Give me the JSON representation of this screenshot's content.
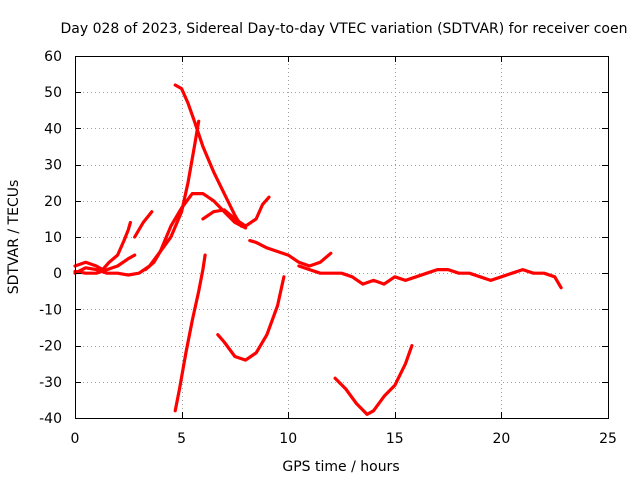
{
  "chart_data": {
    "type": "line",
    "title": "Day 028 of 2023, Sidereal Day-to-day VTEC variation (SDTVAR) for receiver coen",
    "xlabel": "GPS time / hours",
    "ylabel": "SDTVAR / TECUs",
    "xlim": [
      0,
      25
    ],
    "ylim": [
      -40,
      60
    ],
    "xticks": [
      0,
      5,
      10,
      15,
      20,
      25
    ],
    "yticks": [
      -40,
      -30,
      -20,
      -10,
      0,
      10,
      20,
      30,
      40,
      50,
      60
    ],
    "xtick_labels": [
      "0",
      "5",
      "10",
      "15",
      "20",
      "25"
    ],
    "ytick_labels": [
      "-40",
      "-30",
      "-20",
      "-10",
      "0",
      "10",
      "20",
      "30",
      "40",
      "50",
      "60"
    ],
    "grid": true,
    "legend": "none",
    "series_color": "#ff0000",
    "series": [
      {
        "name": "trace-1",
        "points": [
          [
            0,
            0
          ],
          [
            0.5,
            1.5
          ],
          [
            1,
            1
          ],
          [
            1.5,
            0
          ],
          [
            2,
            0
          ],
          [
            2.5,
            -0.5
          ],
          [
            3,
            0
          ],
          [
            3.5,
            2
          ],
          [
            4,
            6
          ],
          [
            4.5,
            13
          ],
          [
            5,
            18
          ],
          [
            5.5,
            22
          ],
          [
            6,
            22
          ],
          [
            6.5,
            20
          ],
          [
            7,
            17
          ],
          [
            7.5,
            14
          ],
          [
            8,
            12.5
          ]
        ]
      },
      {
        "name": "trace-2",
        "points": [
          [
            0,
            2
          ],
          [
            0.5,
            3
          ],
          [
            1,
            2
          ],
          [
            1.3,
            1
          ],
          [
            1.6,
            3
          ],
          [
            2,
            5
          ],
          [
            2.3,
            9
          ],
          [
            2.5,
            12
          ],
          [
            2.6,
            14
          ]
        ]
      },
      {
        "name": "trace-3",
        "points": [
          [
            0,
            0.5
          ],
          [
            0.5,
            0
          ],
          [
            1,
            0
          ],
          [
            1.5,
            1
          ],
          [
            2,
            2
          ],
          [
            2.5,
            4
          ],
          [
            2.8,
            5
          ]
        ]
      },
      {
        "name": "trace-4",
        "points": [
          [
            2.8,
            10
          ],
          [
            3.2,
            14
          ],
          [
            3.6,
            17
          ]
        ]
      },
      {
        "name": "trace-5",
        "points": [
          [
            3.3,
            1
          ],
          [
            3.7,
            3
          ],
          [
            4,
            6
          ],
          [
            4.5,
            10
          ],
          [
            5,
            17
          ],
          [
            5.3,
            25
          ],
          [
            5.6,
            35
          ],
          [
            5.8,
            42
          ]
        ]
      },
      {
        "name": "trace-6",
        "points": [
          [
            4.7,
            52
          ],
          [
            5,
            51
          ],
          [
            5.3,
            47
          ],
          [
            5.6,
            42
          ],
          [
            6,
            35
          ],
          [
            6.5,
            28
          ],
          [
            7,
            22
          ],
          [
            7.5,
            16
          ],
          [
            7.8,
            13
          ]
        ]
      },
      {
        "name": "trace-7",
        "points": [
          [
            6,
            15
          ],
          [
            6.5,
            17
          ],
          [
            7,
            17.5
          ],
          [
            7.5,
            15
          ],
          [
            8,
            13
          ],
          [
            8.5,
            15
          ],
          [
            8.8,
            19
          ],
          [
            9.1,
            21
          ]
        ]
      },
      {
        "name": "trace-8",
        "points": [
          [
            4.7,
            -38
          ],
          [
            4.9,
            -32
          ],
          [
            5.2,
            -22
          ],
          [
            5.5,
            -13
          ],
          [
            5.8,
            -5
          ],
          [
            6,
            1
          ],
          [
            6.1,
            5
          ]
        ]
      },
      {
        "name": "trace-9",
        "points": [
          [
            6.7,
            -17
          ],
          [
            7,
            -19
          ],
          [
            7.5,
            -23
          ],
          [
            8,
            -24
          ],
          [
            8.5,
            -22
          ],
          [
            9,
            -17
          ],
          [
            9.5,
            -9
          ],
          [
            9.8,
            -1
          ]
        ]
      },
      {
        "name": "trace-10",
        "points": [
          [
            8.2,
            9
          ],
          [
            8.5,
            8.5
          ],
          [
            9,
            7
          ],
          [
            9.5,
            6
          ],
          [
            10,
            5
          ],
          [
            10.5,
            3
          ],
          [
            11,
            2
          ],
          [
            11.5,
            3
          ],
          [
            12,
            5.5
          ]
        ]
      },
      {
        "name": "trace-11",
        "points": [
          [
            10.5,
            2
          ],
          [
            11,
            1
          ],
          [
            11.5,
            0
          ],
          [
            12,
            0
          ],
          [
            12.5,
            0
          ],
          [
            13,
            -1
          ],
          [
            13.5,
            -3
          ],
          [
            14,
            -2
          ],
          [
            14.5,
            -3
          ],
          [
            15,
            -1
          ],
          [
            15.5,
            -2
          ],
          [
            16,
            -1
          ],
          [
            16.5,
            0
          ],
          [
            17,
            1
          ],
          [
            17.5,
            1
          ],
          [
            18,
            0
          ],
          [
            18.5,
            0
          ],
          [
            19,
            -1
          ],
          [
            19.5,
            -2
          ],
          [
            20,
            -1
          ],
          [
            20.5,
            0
          ],
          [
            21,
            1
          ],
          [
            21.5,
            0
          ],
          [
            22,
            0
          ],
          [
            22.5,
            -1
          ],
          [
            22.8,
            -4
          ]
        ]
      },
      {
        "name": "trace-12",
        "points": [
          [
            12.2,
            -29
          ],
          [
            12.7,
            -32
          ],
          [
            13.2,
            -36
          ],
          [
            13.7,
            -39
          ],
          [
            14,
            -38
          ],
          [
            14.5,
            -34
          ],
          [
            15,
            -31
          ],
          [
            15.5,
            -25
          ],
          [
            15.8,
            -20
          ]
        ]
      }
    ]
  }
}
